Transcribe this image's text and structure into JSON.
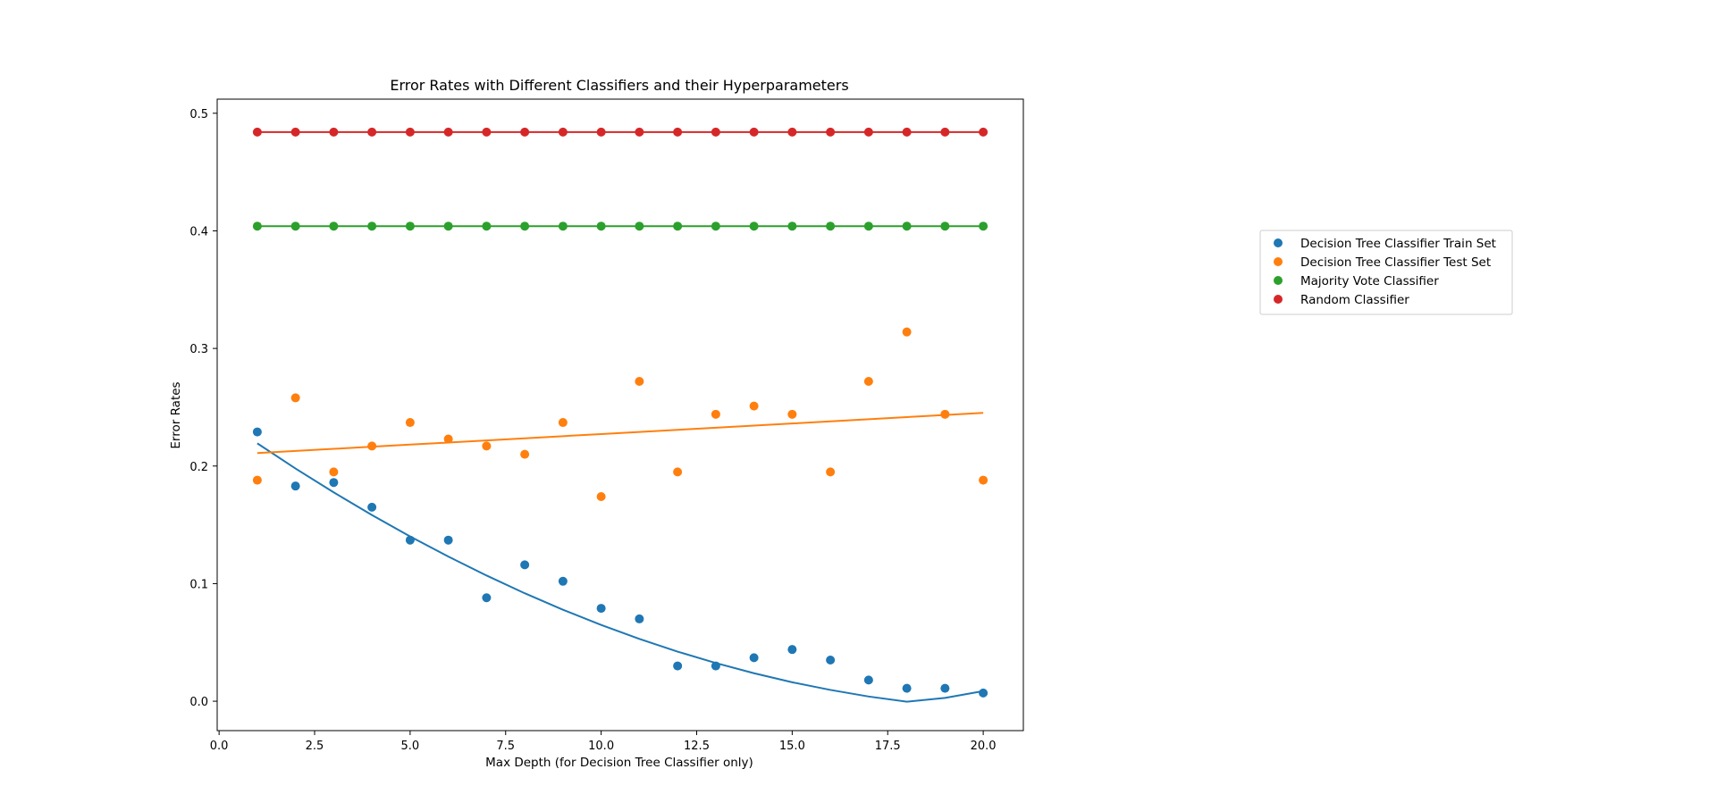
{
  "chart_data": {
    "type": "scatter",
    "title": "Error Rates with Different Classifiers and their Hyperparameters",
    "xlabel": "Max Depth (for Decision Tree Classifier only)",
    "ylabel": "Error Rates",
    "xlim": [
      -0.05,
      21.05
    ],
    "ylim": [
      -0.025,
      0.512
    ],
    "x_ticks": [
      0.0,
      2.5,
      5.0,
      7.5,
      10.0,
      12.5,
      15.0,
      17.5,
      20.0
    ],
    "x_tick_labels": [
      "0.0",
      "2.5",
      "5.0",
      "7.5",
      "10.0",
      "12.5",
      "15.0",
      "17.5",
      "20.0"
    ],
    "y_ticks": [
      0.0,
      0.1,
      0.2,
      0.3,
      0.4,
      0.5
    ],
    "y_tick_labels": [
      "0.0",
      "0.1",
      "0.2",
      "0.3",
      "0.4",
      "0.5"
    ],
    "grid": false,
    "legend_position": "right",
    "x": [
      1,
      2,
      3,
      4,
      5,
      6,
      7,
      8,
      9,
      10,
      11,
      12,
      13,
      14,
      15,
      16,
      17,
      18,
      19,
      20
    ],
    "series": [
      {
        "name": "Decision Tree Classifier Train Set",
        "color": "#1f77b4",
        "values": [
          0.229,
          0.183,
          0.186,
          0.165,
          0.137,
          0.137,
          0.088,
          0.116,
          0.102,
          0.079,
          0.07,
          0.03,
          0.03,
          0.037,
          0.044,
          0.035,
          0.018,
          0.011,
          0.011,
          0.007
        ],
        "trend": [
          0.2193,
          0.1979,
          0.1776,
          0.1583,
          0.1401,
          0.123,
          0.1069,
          0.0918,
          0.0778,
          0.0649,
          0.053,
          0.0422,
          0.0325,
          0.0238,
          0.0161,
          0.0096,
          0.004,
          -0.0004,
          0.0028,
          0.0086
        ]
      },
      {
        "name": "Decision Tree Classifier Test Set",
        "color": "#ff7f0e",
        "values": [
          0.188,
          0.258,
          0.195,
          0.217,
          0.237,
          0.223,
          0.217,
          0.21,
          0.237,
          0.174,
          0.272,
          0.195,
          0.244,
          0.251,
          0.244,
          0.195,
          0.272,
          0.314,
          0.244,
          0.188
        ],
        "trend": [
          0.211,
          0.2128,
          0.2146,
          0.2164,
          0.2182,
          0.22,
          0.2218,
          0.2236,
          0.2254,
          0.2272,
          0.229,
          0.2308,
          0.2326,
          0.2344,
          0.2362,
          0.238,
          0.2398,
          0.2416,
          0.2434,
          0.2452
        ]
      },
      {
        "name": "Majority Vote Classifier",
        "color": "#2ca02c",
        "values": [
          0.404,
          0.404,
          0.404,
          0.404,
          0.404,
          0.404,
          0.404,
          0.404,
          0.404,
          0.404,
          0.404,
          0.404,
          0.404,
          0.404,
          0.404,
          0.404,
          0.404,
          0.404,
          0.404,
          0.404
        ],
        "trend": [
          0.404,
          0.404,
          0.404,
          0.404,
          0.404,
          0.404,
          0.404,
          0.404,
          0.404,
          0.404,
          0.404,
          0.404,
          0.404,
          0.404,
          0.404,
          0.404,
          0.404,
          0.404,
          0.404,
          0.404
        ]
      },
      {
        "name": "Random Classifier",
        "color": "#d62728",
        "values": [
          0.484,
          0.484,
          0.484,
          0.484,
          0.484,
          0.484,
          0.484,
          0.484,
          0.484,
          0.484,
          0.484,
          0.484,
          0.484,
          0.484,
          0.484,
          0.484,
          0.484,
          0.484,
          0.484,
          0.484
        ],
        "trend": [
          0.484,
          0.484,
          0.484,
          0.484,
          0.484,
          0.484,
          0.484,
          0.484,
          0.484,
          0.484,
          0.484,
          0.484,
          0.484,
          0.484,
          0.484,
          0.484,
          0.484,
          0.484,
          0.484,
          0.484
        ]
      }
    ]
  }
}
